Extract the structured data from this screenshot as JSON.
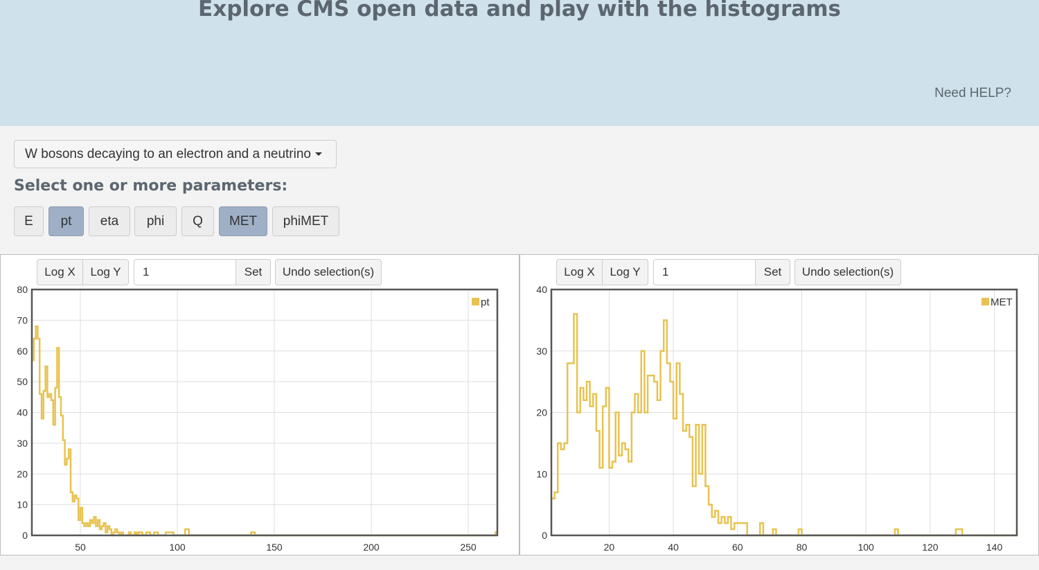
{
  "header": {
    "title": "Explore CMS open data and play with the histograms",
    "help": "Need HELP?"
  },
  "dataset": {
    "selected": "W bosons decaying to an electron and a neutrino"
  },
  "params_label": "Select one or more parameters:",
  "params": [
    {
      "label": "E",
      "active": false
    },
    {
      "label": "pt",
      "active": true
    },
    {
      "label": "eta",
      "active": false
    },
    {
      "label": "phi",
      "active": false
    },
    {
      "label": "Q",
      "active": false
    },
    {
      "label": "MET",
      "active": true
    },
    {
      "label": "phiMET",
      "active": false
    }
  ],
  "toolbar": {
    "log_x": "Log X",
    "log_y": "Log Y",
    "bin_value": "1",
    "set": "Set",
    "undo": "Undo selection(s)"
  },
  "colors": {
    "series": "#e8c250",
    "header_bg": "#cfe1ea",
    "active_param": "#9fb0c6"
  },
  "chart_data": [
    {
      "type": "line",
      "series_name": "pt",
      "xlim": [
        25,
        265
      ],
      "ylim": [
        0,
        80
      ],
      "xticks": [
        50,
        100,
        150,
        200,
        250
      ],
      "yticks": [
        0,
        10,
        20,
        30,
        40,
        50,
        60,
        70,
        80
      ],
      "step": true,
      "x": [
        25,
        26,
        27,
        28,
        29,
        30,
        31,
        32,
        33,
        34,
        35,
        36,
        37,
        38,
        39,
        40,
        41,
        42,
        43,
        44,
        45,
        46,
        47,
        48,
        49,
        50,
        51,
        52,
        53,
        54,
        55,
        56,
        57,
        58,
        59,
        60,
        61,
        62,
        63,
        64,
        65,
        66,
        67,
        68,
        69,
        70,
        71,
        72,
        73,
        74,
        75,
        76,
        77,
        78,
        79,
        80,
        82,
        84,
        86,
        88,
        90,
        92,
        94,
        96,
        98,
        100,
        102,
        104,
        106,
        110,
        120,
        130,
        136,
        138,
        140,
        150,
        200,
        250,
        262,
        264
      ],
      "y": [
        57,
        64,
        68,
        64,
        46,
        38,
        47,
        55,
        45,
        46,
        44,
        36,
        48,
        61,
        45,
        39,
        31,
        23,
        25,
        28,
        14,
        11,
        13,
        12,
        5,
        9,
        4,
        3,
        4,
        3,
        5,
        4,
        6,
        3,
        5,
        2,
        3,
        4,
        1,
        3,
        2,
        0,
        1,
        2,
        1,
        0,
        1,
        0,
        0,
        0,
        1,
        0,
        0,
        1,
        0,
        1,
        0,
        1,
        0,
        1,
        0,
        0,
        1,
        1,
        0,
        0,
        0,
        2,
        0,
        0,
        0,
        0,
        0,
        1,
        0,
        0,
        0,
        0,
        0,
        1
      ]
    },
    {
      "type": "line",
      "series_name": "MET",
      "xlim": [
        2,
        147
      ],
      "ylim": [
        0,
        40
      ],
      "xticks": [
        20,
        40,
        60,
        80,
        100,
        120,
        140
      ],
      "yticks": [
        0,
        10,
        20,
        30,
        40
      ],
      "step": true,
      "x": [
        2,
        3,
        4,
        5,
        6,
        7,
        8,
        9,
        10,
        11,
        12,
        13,
        14,
        15,
        16,
        17,
        18,
        19,
        20,
        21,
        22,
        23,
        24,
        25,
        26,
        27,
        28,
        29,
        30,
        31,
        32,
        33,
        34,
        35,
        36,
        37,
        38,
        39,
        40,
        41,
        42,
        43,
        44,
        45,
        46,
        47,
        48,
        49,
        50,
        51,
        52,
        53,
        54,
        55,
        56,
        57,
        58,
        59,
        60,
        61,
        62,
        63,
        64,
        65,
        66,
        67,
        68,
        70,
        71,
        72,
        74,
        78,
        79,
        80,
        90,
        100,
        108,
        109,
        110,
        120,
        127,
        128,
        130,
        146,
        147
      ],
      "y": [
        6,
        7,
        15,
        14,
        15,
        28,
        28,
        36,
        20,
        24,
        22,
        25,
        21,
        23,
        17,
        11,
        21,
        24,
        11,
        12,
        20,
        13,
        15,
        14,
        12,
        20,
        23,
        20,
        30,
        20,
        26,
        26,
        25,
        22,
        30,
        35,
        28,
        25,
        19,
        28,
        23,
        17,
        18,
        16,
        8,
        18,
        10,
        18,
        8,
        5,
        3,
        4,
        2,
        3,
        2,
        3,
        1,
        2,
        2,
        2,
        2,
        0,
        0,
        0,
        0,
        2,
        0,
        0,
        1,
        0,
        0,
        0,
        1,
        0,
        0,
        0,
        0,
        1,
        0,
        0,
        0,
        1,
        0,
        0,
        1
      ]
    }
  ]
}
